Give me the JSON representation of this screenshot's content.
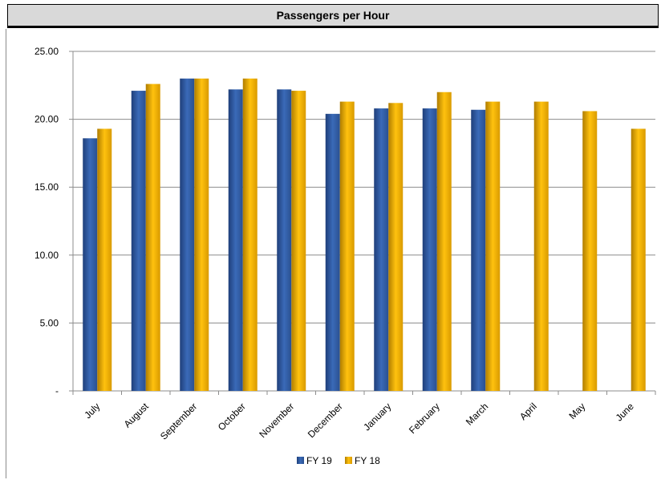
{
  "chart_data": {
    "type": "bar",
    "title": "Passengers per Hour",
    "xlabel": "",
    "ylabel": "",
    "categories": [
      "July",
      "August",
      "September",
      "October",
      "November",
      "December",
      "January",
      "February",
      "March",
      "April",
      "May",
      "June"
    ],
    "series": [
      {
        "name": "FY 19",
        "color": "#2f5597",
        "values": [
          18.6,
          22.1,
          23.0,
          22.2,
          22.2,
          20.4,
          20.8,
          20.8,
          20.7,
          null,
          null,
          null
        ]
      },
      {
        "name": "FY 18",
        "color": "#e6a800",
        "values": [
          19.3,
          22.6,
          23.0,
          23.0,
          22.1,
          21.3,
          21.2,
          22.0,
          21.3,
          21.3,
          20.6,
          19.3
        ]
      }
    ],
    "ylim": [
      0,
      25
    ],
    "yticks": [
      {
        "value": 0,
        "label": "-"
      },
      {
        "value": 5,
        "label": "5.00"
      },
      {
        "value": 10,
        "label": "10.00"
      },
      {
        "value": 15,
        "label": "15.00"
      },
      {
        "value": 20,
        "label": "20.00"
      },
      {
        "value": 25,
        "label": "25.00"
      }
    ],
    "grid": "horizontal",
    "legend": "bottom-center"
  }
}
